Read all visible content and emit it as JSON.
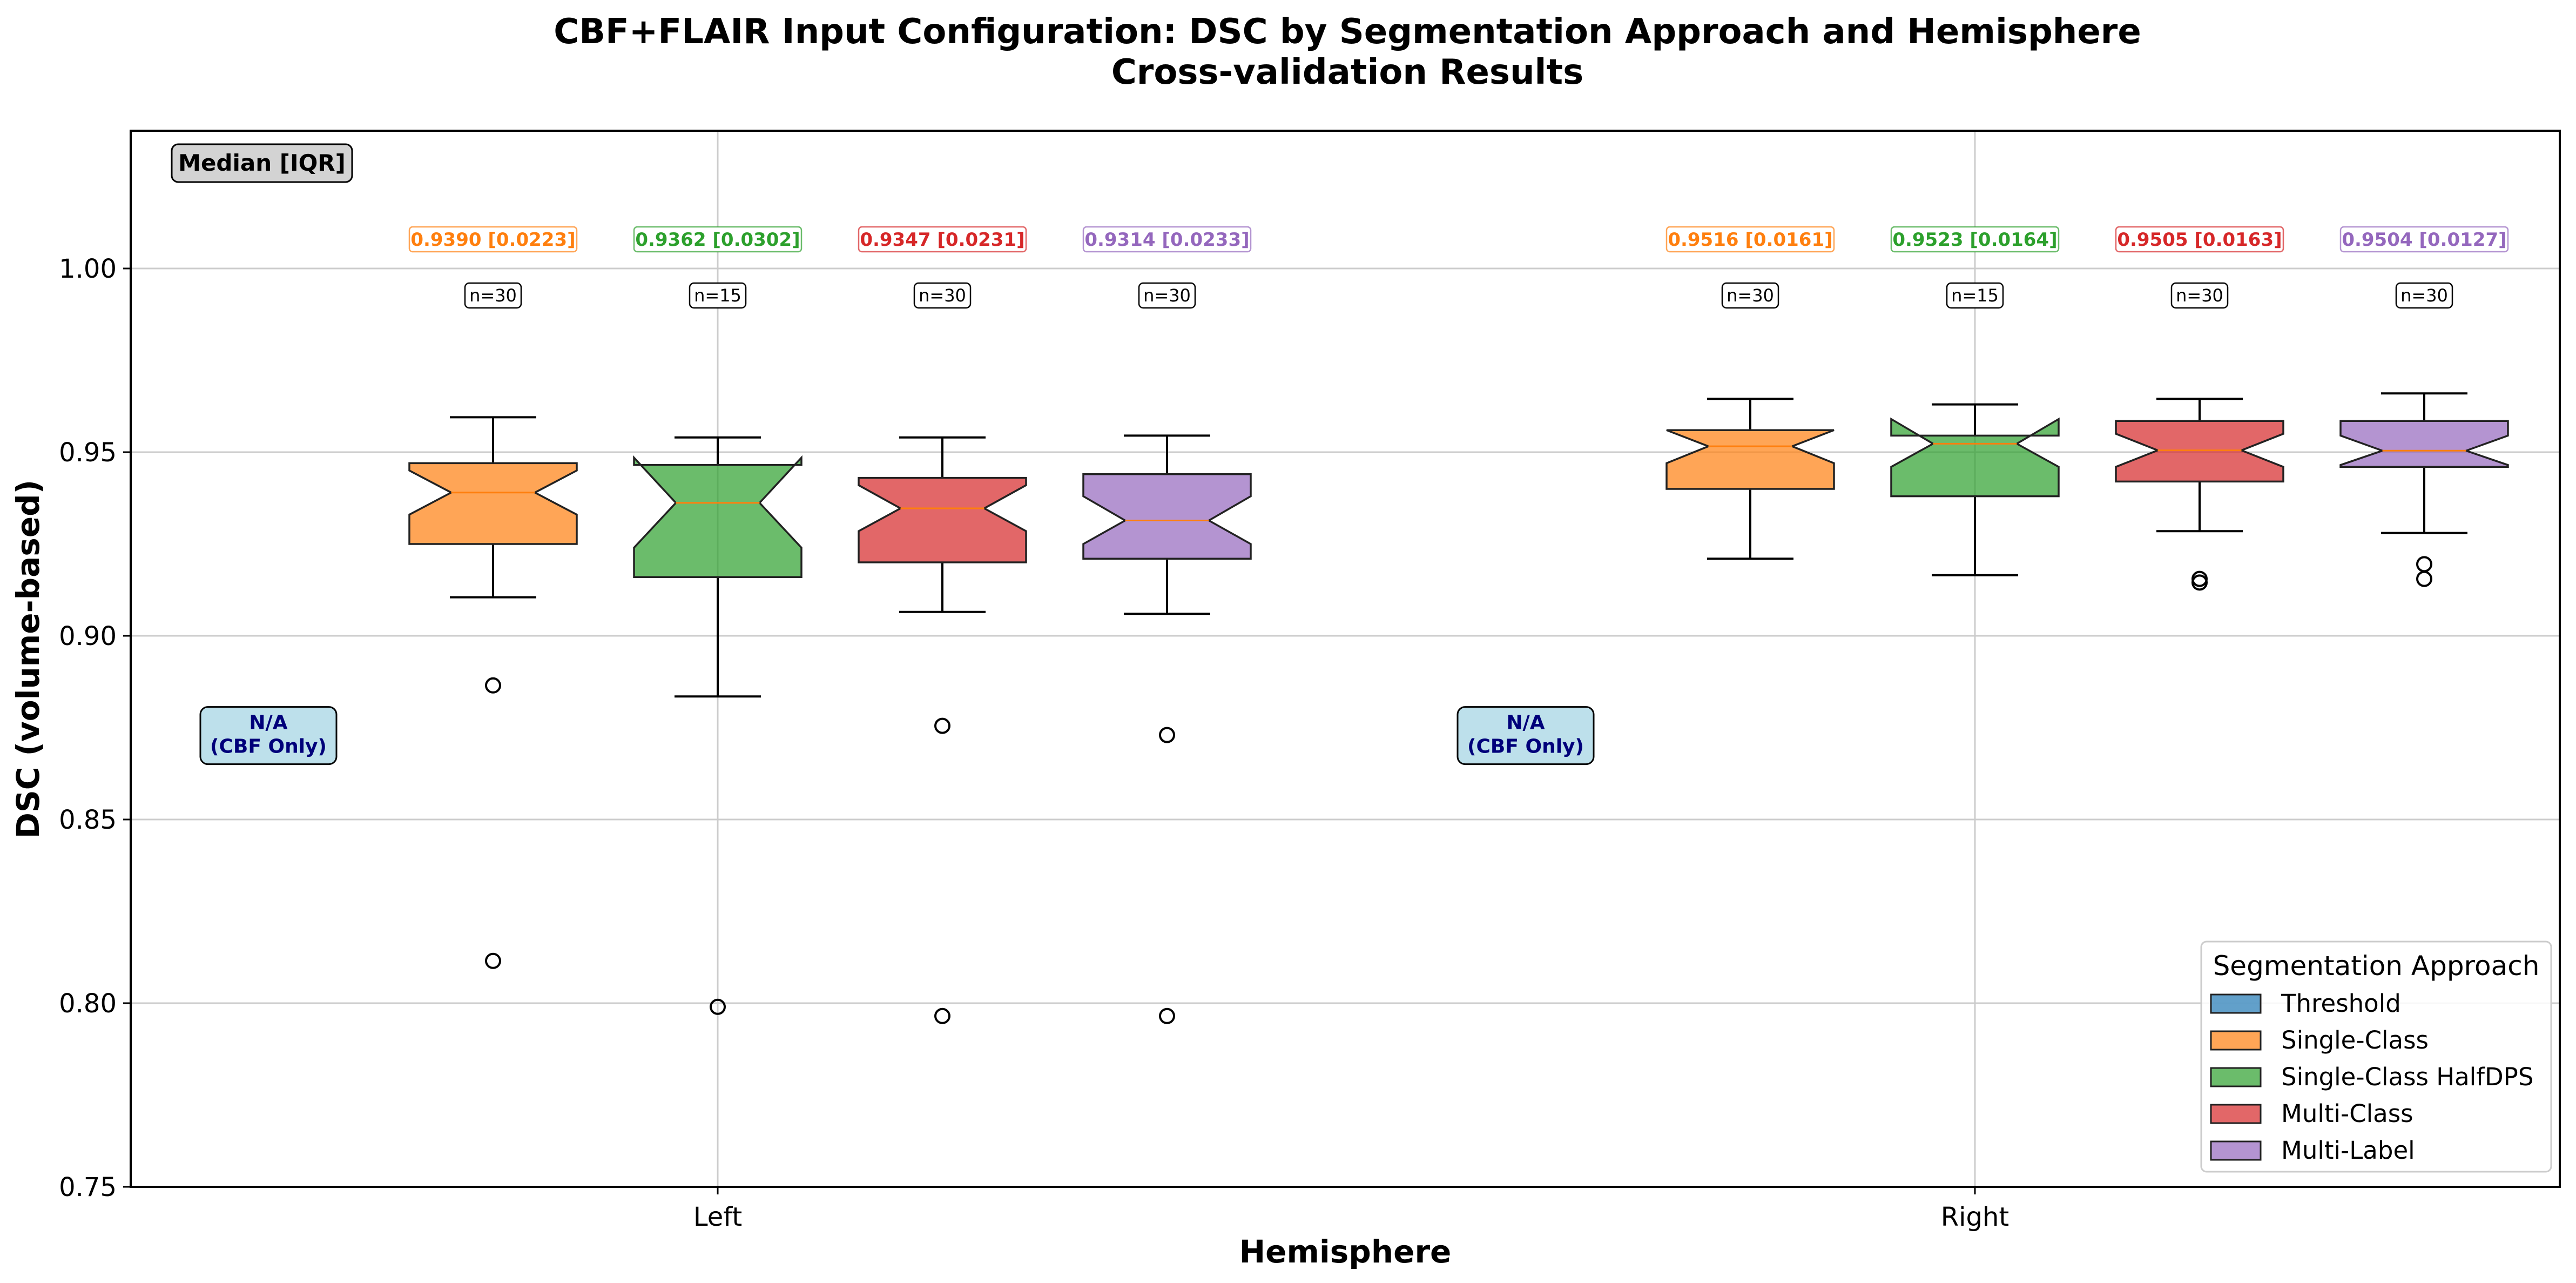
{
  "chart_data": {
    "type": "boxplot",
    "title": "CBF+FLAIR Input Configuration: DSC by Segmentation Approach and Hemisphere",
    "subtitle": "Cross-validation Results",
    "xlabel": "Hemisphere",
    "ylabel": "DSC (volume-based)",
    "ylim": [
      0.75,
      1.0375
    ],
    "yticks": [
      "0.75",
      "0.80",
      "0.85",
      "0.90",
      "0.95",
      "1.00"
    ],
    "categories": [
      "Left",
      "Right"
    ],
    "grid": true,
    "legend": {
      "title": "Segmentation Approach",
      "position": "lower-right"
    },
    "stats_header": "Median [IQR]",
    "na_note": {
      "line1": "N/A",
      "line2": "(CBF Only)"
    },
    "series": [
      {
        "name": "Threshold",
        "color": "#1f77b4",
        "boxes": [
          null,
          null
        ]
      },
      {
        "name": "Single-Class",
        "color": "#ff7f0e",
        "boxes": [
          {
            "median": 0.939,
            "q1": 0.925,
            "q3": 0.947,
            "whislo": 0.9105,
            "whishi": 0.9595,
            "notch_lo": 0.933,
            "notch_hi": 0.945,
            "fliers": [
              0.8865,
              0.8115
            ],
            "n_label": "n=30",
            "stat_label": "0.9390 [0.0223]"
          },
          {
            "median": 0.9516,
            "q1": 0.94,
            "q3": 0.956,
            "whislo": 0.921,
            "whishi": 0.9645,
            "notch_lo": 0.947,
            "notch_hi": 0.956,
            "fliers": [],
            "n_label": "n=30",
            "stat_label": "0.9516 [0.0161]"
          }
        ]
      },
      {
        "name": "Single-Class HalfDPS",
        "color": "#2ca02c",
        "boxes": [
          {
            "median": 0.9362,
            "q1": 0.916,
            "q3": 0.9465,
            "whislo": 0.8835,
            "whishi": 0.954,
            "notch_lo": 0.924,
            "notch_hi": 0.9485,
            "fliers": [
              0.799
            ],
            "n_label": "n=15",
            "stat_label": "0.9362 [0.0302]"
          },
          {
            "median": 0.9523,
            "q1": 0.938,
            "q3": 0.9545,
            "whislo": 0.9165,
            "whishi": 0.963,
            "notch_lo": 0.946,
            "notch_hi": 0.959,
            "fliers": [],
            "n_label": "n=15",
            "stat_label": "0.9523 [0.0164]"
          }
        ]
      },
      {
        "name": "Multi-Class",
        "color": "#d62728",
        "boxes": [
          {
            "median": 0.9347,
            "q1": 0.92,
            "q3": 0.943,
            "whislo": 0.9065,
            "whishi": 0.954,
            "notch_lo": 0.9285,
            "notch_hi": 0.941,
            "fliers": [
              0.8755,
              0.7965
            ],
            "n_label": "n=30",
            "stat_label": "0.9347 [0.0231]"
          },
          {
            "median": 0.9505,
            "q1": 0.942,
            "q3": 0.9585,
            "whislo": 0.9285,
            "whishi": 0.9645,
            "notch_lo": 0.946,
            "notch_hi": 0.955,
            "fliers": [
              0.9155,
              0.9145
            ],
            "n_label": "n=30",
            "stat_label": "0.9505 [0.0163]"
          }
        ]
      },
      {
        "name": "Multi-Label",
        "color": "#9467bd",
        "boxes": [
          {
            "median": 0.9314,
            "q1": 0.921,
            "q3": 0.944,
            "whislo": 0.906,
            "whishi": 0.9545,
            "notch_lo": 0.925,
            "notch_hi": 0.938,
            "fliers": [
              0.873,
              0.7965
            ],
            "n_label": "n=30",
            "stat_label": "0.9314 [0.0233]"
          },
          {
            "median": 0.9504,
            "q1": 0.946,
            "q3": 0.9585,
            "whislo": 0.928,
            "whishi": 0.966,
            "notch_lo": 0.9465,
            "notch_hi": 0.9545,
            "fliers": [
              0.9195,
              0.9155
            ],
            "n_label": "n=30",
            "stat_label": "0.9504 [0.0127]"
          }
        ]
      }
    ]
  }
}
